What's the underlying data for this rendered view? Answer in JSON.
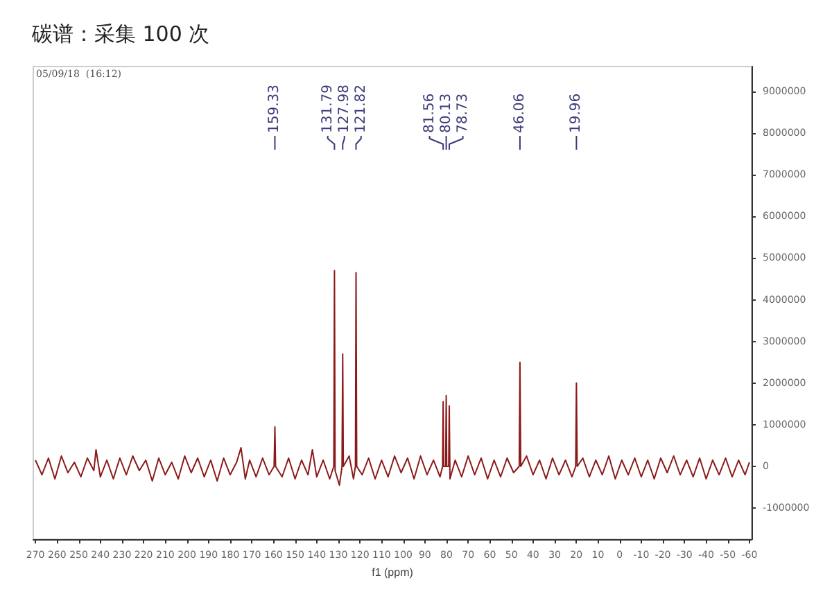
{
  "chart_data": {
    "type": "line",
    "title": "碳谱：采集 100 次",
    "xlabel": "f1 (ppm)",
    "color": "#8b1a1a",
    "grid": false,
    "marker": "none",
    "line_style": "solid",
    "xlim": [
      271,
      -61
    ],
    "xticks": [
      270,
      260,
      250,
      240,
      230,
      220,
      210,
      200,
      190,
      180,
      170,
      160,
      150,
      140,
      130,
      120,
      110,
      100,
      90,
      80,
      70,
      60,
      50,
      40,
      30,
      20,
      10,
      0,
      -10,
      -20,
      -30,
      -40,
      -50,
      -60
    ],
    "ylim": [
      -1750000,
      9600000
    ],
    "yticks": [
      -1000000,
      0,
      1000000,
      2000000,
      3000000,
      4000000,
      5000000,
      6000000,
      7000000,
      8000000,
      9000000
    ],
    "annotations": [
      "05/09/18  (16:12)",
      {
        "text": "159.33",
        "x": 159.33
      },
      {
        "text": "131.79",
        "x": 131.79
      },
      {
        "text": "127.98",
        "x": 127.98
      },
      {
        "text": "121.82",
        "x": 121.82
      },
      {
        "text": "81.56",
        "x": 81.56
      },
      {
        "text": "80.13",
        "x": 80.13
      },
      {
        "text": "78.73",
        "x": 78.73
      },
      {
        "text": "46.06",
        "x": 46.06
      },
      {
        "text": "19.96",
        "x": 19.96
      }
    ],
    "x": [
      270,
      267,
      264,
      261,
      258,
      255,
      252,
      249,
      246,
      243,
      242,
      240,
      237,
      234,
      231,
      228,
      225,
      222,
      219,
      216,
      213,
      210,
      207,
      204,
      201,
      198,
      195,
      192,
      189,
      186,
      183,
      180,
      177,
      175,
      173,
      171,
      168,
      165,
      162,
      159.7,
      159.33,
      159.0,
      156,
      153,
      150,
      147,
      144,
      142,
      140,
      137,
      134,
      132.1,
      131.79,
      131.5,
      129.5,
      128.3,
      127.98,
      127.7,
      125,
      123,
      122.1,
      121.82,
      121.5,
      119,
      116,
      113,
      110,
      107,
      104,
      101,
      98,
      95,
      92,
      89,
      86,
      83,
      81.8,
      81.56,
      81.3,
      80.4,
      80.13,
      79.9,
      79.0,
      78.73,
      78.4,
      76,
      73,
      70,
      67,
      64,
      61,
      58,
      55,
      52,
      49,
      46.4,
      46.06,
      45.7,
      43,
      40,
      37,
      34,
      31,
      28,
      25,
      22,
      20.3,
      19.96,
      19.6,
      17,
      14,
      11,
      8,
      5,
      2,
      -1,
      -4,
      -7,
      -10,
      -13,
      -16,
      -19,
      -22,
      -25,
      -28,
      -31,
      -34,
      -37,
      -40,
      -43,
      -46,
      -49,
      -52,
      -55,
      -58,
      -60
    ],
    "values": [
      150000,
      -200000,
      200000,
      -300000,
      250000,
      -150000,
      100000,
      -250000,
      200000,
      -100000,
      400000,
      -250000,
      150000,
      -300000,
      200000,
      -200000,
      250000,
      -100000,
      150000,
      -350000,
      200000,
      -200000,
      100000,
      -300000,
      250000,
      -150000,
      200000,
      -250000,
      150000,
      -350000,
      200000,
      -200000,
      100000,
      450000,
      -300000,
      150000,
      -250000,
      200000,
      -200000,
      0,
      950000,
      0,
      -250000,
      200000,
      -300000,
      150000,
      -200000,
      400000,
      -250000,
      150000,
      -300000,
      0,
      4700000,
      -100000,
      -450000,
      0,
      2700000,
      0,
      250000,
      -300000,
      0,
      4650000,
      0,
      -200000,
      200000,
      -300000,
      150000,
      -250000,
      250000,
      -150000,
      200000,
      -300000,
      250000,
      -200000,
      150000,
      -250000,
      0,
      1550000,
      0,
      0,
      1700000,
      0,
      0,
      1450000,
      -300000,
      150000,
      -250000,
      250000,
      -200000,
      200000,
      -300000,
      150000,
      -250000,
      200000,
      -150000,
      0,
      2500000,
      0,
      250000,
      -200000,
      150000,
      -300000,
      200000,
      -200000,
      150000,
      -250000,
      0,
      2000000,
      0,
      200000,
      -250000,
      150000,
      -200000,
      250000,
      -300000,
      150000,
      -200000,
      200000,
      -250000,
      150000,
      -300000,
      200000,
      -150000,
      250000,
      -200000,
      150000,
      -250000,
      200000,
      -300000,
      150000,
      -200000,
      200000,
      -250000,
      150000,
      -200000,
      100000
    ]
  }
}
